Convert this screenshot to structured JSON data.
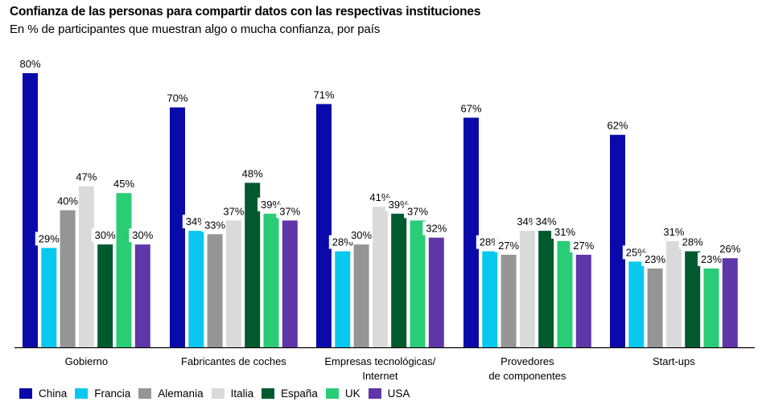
{
  "header": {
    "title": "Confianza de las personas para compartir datos con las respectivas instituciones",
    "subtitle": "En % de participantes que muestran algo o mucha confianza, por país"
  },
  "chart_data": {
    "type": "bar",
    "title": "Confianza de las personas para compartir datos con las respectivas instituciones",
    "subtitle": "En % de participantes que muestran algo o mucha confianza, por país",
    "xlabel": "",
    "ylabel": "",
    "ylim": [
      0,
      80
    ],
    "grid": false,
    "legend_position": "bottom-left",
    "categories": [
      [
        "Gobierno"
      ],
      [
        "Fabricantes de coches"
      ],
      [
        "Empresas tecnológicas/",
        "Internet"
      ],
      [
        "Provedores",
        "de componentes"
      ],
      [
        "Start-ups"
      ]
    ],
    "series": [
      {
        "name": "China",
        "color": "#0a0aaa",
        "values": [
          80,
          70,
          71,
          67,
          62
        ]
      },
      {
        "name": "Francia",
        "color": "#08c8f0",
        "values": [
          29,
          34,
          28,
          28,
          25
        ]
      },
      {
        "name": "Alemania",
        "color": "#959595",
        "values": [
          40,
          33,
          30,
          27,
          23
        ]
      },
      {
        "name": "Italia",
        "color": "#dadada",
        "values": [
          47,
          37,
          41,
          34,
          31
        ]
      },
      {
        "name": "España",
        "color": "#015a2e",
        "values": [
          30,
          48,
          39,
          34,
          28
        ]
      },
      {
        "name": "UK",
        "color": "#28cd76",
        "values": [
          45,
          39,
          37,
          31,
          23
        ]
      },
      {
        "name": "USA",
        "color": "#5f36a8",
        "values": [
          30,
          37,
          32,
          27,
          26
        ]
      }
    ],
    "value_suffix": "%"
  }
}
